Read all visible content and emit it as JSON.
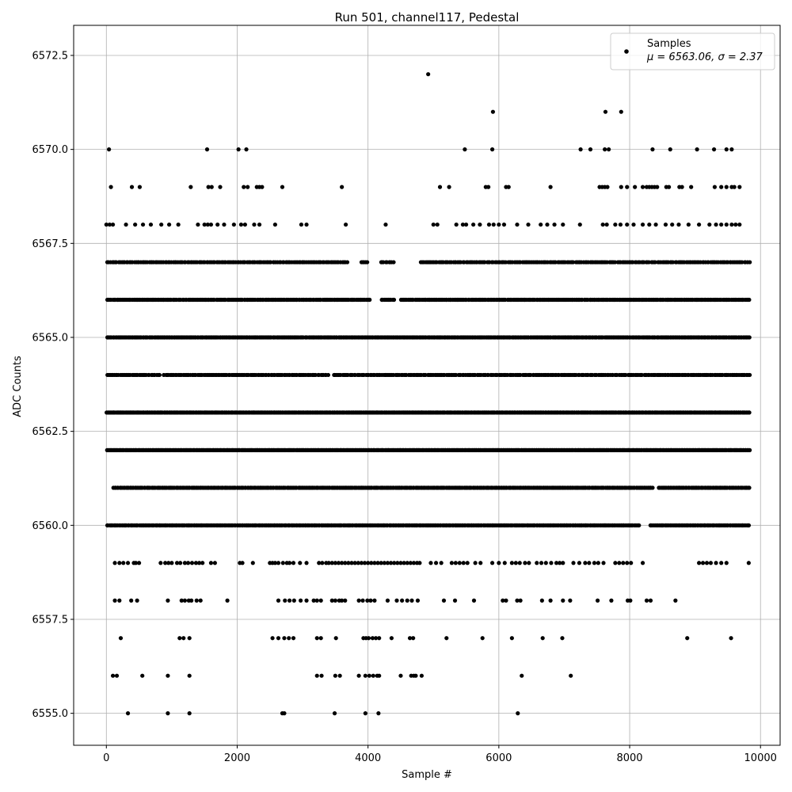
{
  "chart_data": {
    "type": "scatter",
    "title": "Run 501, channel117, Pedestal",
    "xlabel": "Sample #",
    "ylabel": "ADC Counts",
    "xlim": [
      -500,
      10300
    ],
    "ylim": [
      6554.15,
      6573.3
    ],
    "grid": true,
    "legend_position": "top-right",
    "x_ticks": [
      0,
      2000,
      4000,
      6000,
      8000,
      10000
    ],
    "x_tick_labels": [
      "0",
      "2000",
      "4000",
      "6000",
      "8000",
      "10000"
    ],
    "y_ticks": [
      6555.0,
      6557.5,
      6560.0,
      6562.5,
      6565.0,
      6567.5,
      6570.0,
      6572.5
    ],
    "y_tick_labels": [
      "6555.0",
      "6557.5",
      "6560.0",
      "6562.5",
      "6565.0",
      "6567.5",
      "6570.0",
      "6572.5"
    ],
    "marker_color": "#000000",
    "legend": {
      "series_label": "Samples",
      "stats_label": "μ = 6563.06, σ = 2.37"
    },
    "series": [
      {
        "name": "Samples",
        "x_range": [
          0,
          9840
        ],
        "levels": [
          {
            "y": 6572,
            "x": [
              4920
            ]
          },
          {
            "y": 6571,
            "x": [
              5910,
              7630,
              7870
            ]
          },
          {
            "y": 6570,
            "x": [
              40,
              1540,
              2020,
              2140,
              5480,
              5900,
              7250,
              7400,
              7620,
              7680,
              8350,
              8620,
              9030,
              9290,
              9480,
              9560
            ]
          },
          {
            "y": 6569,
            "x": [
              70,
              390,
              510,
              1290,
              1560,
              1610,
              1740,
              2100,
              2160,
              2300,
              2340,
              2380,
              2690,
              3600,
              5100,
              5240,
              5800,
              5840,
              6110,
              6150,
              6790,
              7540,
              7580,
              7620,
              7660,
              7870,
              7960,
              8080,
              8200,
              8260,
              8300,
              8340,
              8380,
              8420,
              8560,
              8600,
              8760,
              8800,
              8940,
              9300,
              9400,
              9480,
              9560,
              9600,
              9680
            ]
          },
          {
            "y": 6568,
            "x": [
              0,
              50,
              100,
              300,
              440,
              560,
              680,
              840,
              960,
              1100,
              1400,
              1500,
              1550,
              1600,
              1700,
              1800,
              1950,
              2060,
              2120,
              2260,
              2340,
              2580,
              2980,
              3060,
              3660,
              4270,
              5000,
              5060,
              5350,
              5450,
              5500,
              5610,
              5710,
              5850,
              5920,
              6000,
              6080,
              6280,
              6450,
              6640,
              6740,
              6850,
              6980,
              7240,
              7590,
              7650,
              7780,
              7860,
              7960,
              8060,
              8200,
              8300,
              8400,
              8550,
              8650,
              8750,
              8900,
              9060,
              9220,
              9320,
              9400,
              9480,
              9560,
              9620,
              9680
            ]
          },
          {
            "y": 6567,
            "x_range": [
              0,
              9840
            ],
            "count": 400,
            "gaps": [
              [
                3700,
                3900
              ],
              [
                3990,
                4200
              ],
              [
                4400,
                4780
              ]
            ]
          },
          {
            "y": 6566,
            "x_range": [
              0,
              9840
            ],
            "count": 460,
            "gaps": [
              [
                4050,
                4200
              ],
              [
                4420,
                4480
              ]
            ]
          },
          {
            "y": 6565,
            "x_range": [
              0,
              9840
            ],
            "count": 520,
            "gaps": []
          },
          {
            "y": 6564,
            "x_range": [
              0,
              9840
            ],
            "count": 440,
            "gaps": [
              [
                840,
                860
              ],
              [
                3400,
                3460
              ]
            ]
          },
          {
            "y": 6563,
            "x_range": [
              0,
              9840
            ],
            "count": 620,
            "gaps": []
          },
          {
            "y": 6562,
            "x_range": [
              0,
              9840
            ],
            "count": 600,
            "gaps": []
          },
          {
            "y": 6561,
            "x_range": [
              100,
              9840
            ],
            "count": 500,
            "gaps": [
              [
                8360,
                8420
              ]
            ]
          },
          {
            "y": 6560,
            "x_range": [
              0,
              9840
            ],
            "count": 520,
            "gaps": [
              [
                8160,
                8300
              ]
            ]
          },
          {
            "y": 6559,
            "x": [
              130,
              200,
              260,
              330,
              420,
              450,
              500,
              830,
              900,
              950,
              1000,
              1080,
              1130,
              1200,
              1250,
              1310,
              1370,
              1420,
              1470,
              1600,
              1660,
              2040,
              2080,
              2240,
              2500,
              2540,
              2580,
              2630,
              2700,
              2760,
              2800,
              2860,
              2960,
              3060,
              3250,
              3300,
              3360,
              3400,
              3450,
              3500,
              3550,
              3600,
              3650,
              3700,
              3750,
              3800,
              3850,
              3900,
              3950,
              4000,
              4050,
              4100,
              4150,
              4200,
              4250,
              4300,
              4350,
              4400,
              4450,
              4500,
              4550,
              4600,
              4650,
              4700,
              4750,
              4790,
              4960,
              5040,
              5120,
              5280,
              5340,
              5400,
              5460,
              5520,
              5640,
              5720,
              5900,
              6000,
              6090,
              6200,
              6260,
              6320,
              6400,
              6460,
              6580,
              6650,
              6720,
              6800,
              6880,
              6930,
              6980,
              7140,
              7230,
              7320,
              7380,
              7460,
              7520,
              7600,
              7780,
              7840,
              7900,
              7960,
              8020,
              8200,
              9060,
              9120,
              9180,
              9240,
              9320,
              9400,
              9480,
              9820
            ]
          },
          {
            "y": 6558,
            "x": [
              130,
              200,
              380,
              470,
              940,
              1150,
              1200,
              1260,
              1300,
              1380,
              1440,
              1850,
              2630,
              2730,
              2800,
              2870,
              2970,
              3060,
              3170,
              3220,
              3280,
              3450,
              3500,
              3560,
              3600,
              3650,
              3860,
              3920,
              3990,
              4040,
              4100,
              4300,
              4440,
              4520,
              4600,
              4670,
              4760,
              5160,
              5330,
              5620,
              6060,
              6110,
              6280,
              6330,
              6660,
              6790,
              6980,
              7090,
              7510,
              7720,
              7970,
              8010,
              8260,
              8320,
              8700
            ]
          },
          {
            "y": 6557,
            "x": [
              220,
              1120,
              1180,
              1270,
              2540,
              2630,
              2720,
              2790,
              2860,
              3220,
              3280,
              3510,
              3930,
              3970,
              4010,
              4070,
              4120,
              4170,
              4360,
              4640,
              4690,
              5200,
              5750,
              6200,
              6670,
              6970,
              8880,
              9550
            ]
          },
          {
            "y": 6556,
            "x": [
              100,
              160,
              550,
              940,
              1270,
              3220,
              3290,
              3500,
              3570,
              3860,
              3960,
              4020,
              4080,
              4140,
              4170,
              4500,
              4660,
              4700,
              4730,
              4820,
              6350,
              7100
            ]
          },
          {
            "y": 6555,
            "x": [
              330,
              940,
              1270,
              2690,
              2720,
              3490,
              3960,
              4160,
              6290
            ]
          }
        ]
      }
    ]
  }
}
